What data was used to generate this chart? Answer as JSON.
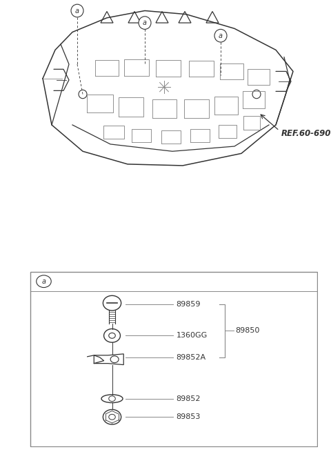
{
  "bg_color": "#ffffff",
  "line_color": "#333333",
  "light_gray": "#888888",
  "medium_gray": "#555555",
  "ref_label": "REF.60-690",
  "callout_label": "a",
  "group_label": "89850",
  "part_labels": [
    "89859",
    "1360GG",
    "89852A",
    "89852",
    "89853"
  ],
  "fig_width": 4.8,
  "fig_height": 6.55,
  "dpi": 100
}
